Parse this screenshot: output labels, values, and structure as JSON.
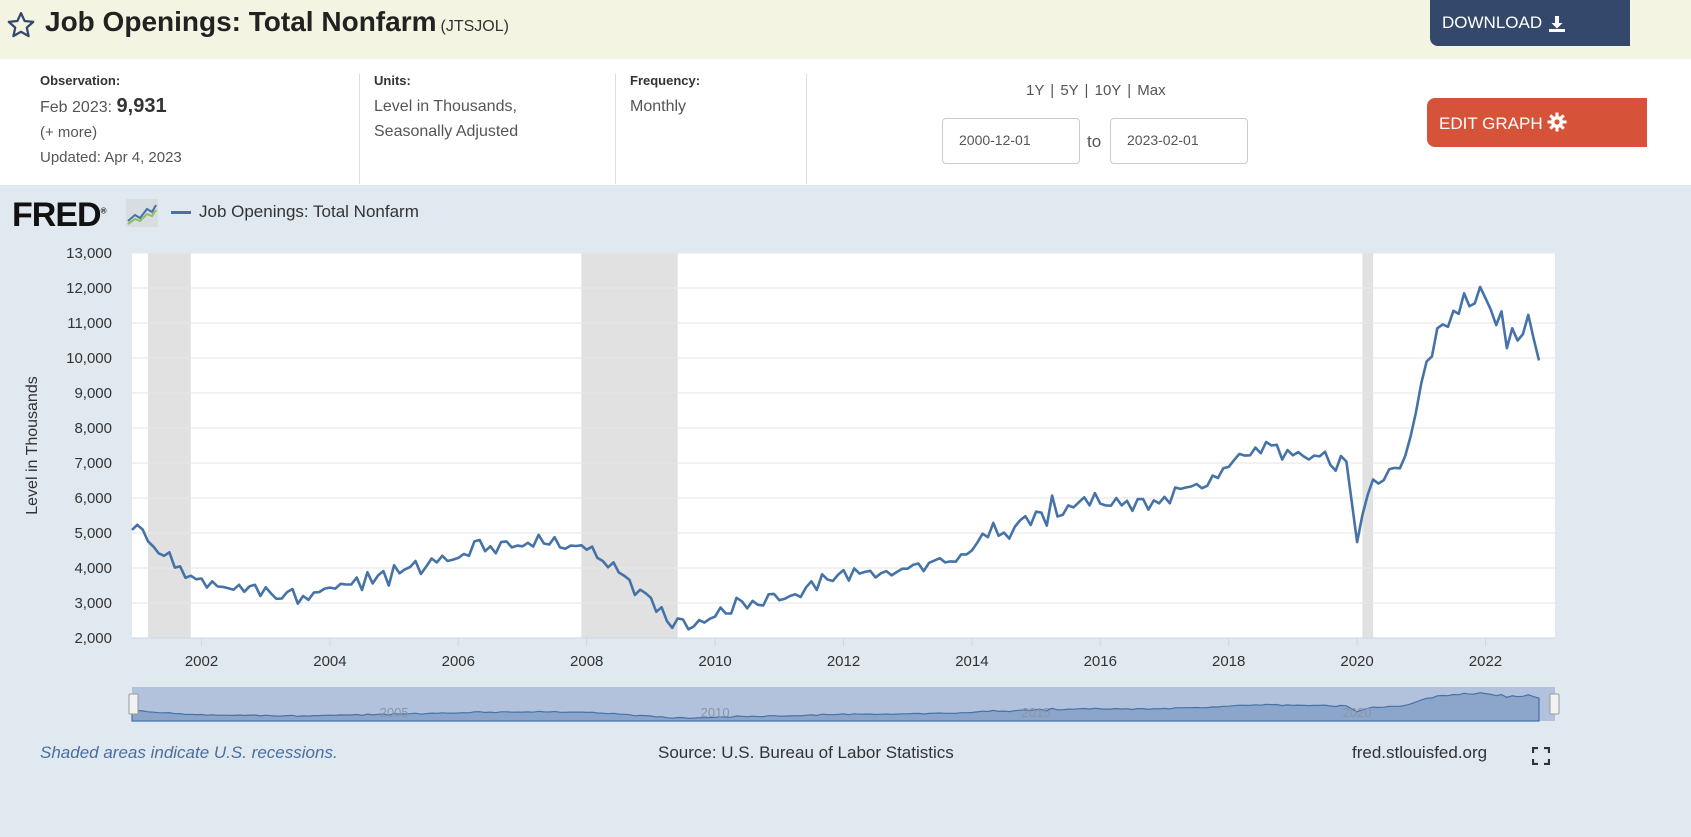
{
  "header": {
    "title": "Job Openings: Total Nonfarm",
    "series_id": "(JTSJOL)",
    "download_label": "DOWNLOAD",
    "colors": {
      "bg": "#f4f4e2",
      "download_bg": "#33486b"
    }
  },
  "meta": {
    "observation_label": "Observation:",
    "observation_period": "Feb 2023:",
    "observation_value": "9,931",
    "more_link": "(+ more)",
    "updated": "Updated: Apr 4, 2023",
    "units_label": "Units:",
    "units_line1": "Level in Thousands,",
    "units_line2": "Seasonally Adjusted",
    "frequency_label": "Frequency:",
    "frequency_value": "Monthly",
    "range_links": [
      "1Y",
      "5Y",
      "10Y",
      "Max"
    ],
    "start_date": "2000-12-01",
    "to_label": "to",
    "end_date": "2023-02-01",
    "edit_label": "EDIT GRAPH",
    "edit_color": "#d6533a"
  },
  "legend": {
    "series_name": "Job Openings: Total Nonfarm",
    "logo_text": "FRED"
  },
  "footer": {
    "recession_note": "Shaded areas indicate U.S. recessions.",
    "source": "Source: U.S. Bureau of Labor Statistics",
    "site": "fred.stlouisfed.org"
  },
  "chart_data": {
    "type": "line",
    "ylabel": "Level in Thousands",
    "ylim": [
      2000,
      13000
    ],
    "yticks": [
      2000,
      3000,
      4000,
      5000,
      6000,
      7000,
      8000,
      9000,
      10000,
      11000,
      12000,
      13000
    ],
    "ytick_labels": [
      "2,000",
      "3,000",
      "4,000",
      "5,000",
      "6,000",
      "7,000",
      "8,000",
      "9,000",
      "10,000",
      "11,000",
      "12,000",
      "13,000"
    ],
    "xrange": [
      "2000-12",
      "2023-02"
    ],
    "xticks": [
      "2002",
      "2004",
      "2006",
      "2008",
      "2010",
      "2012",
      "2014",
      "2016",
      "2018",
      "2020",
      "2022"
    ],
    "navigator_labels": [
      "2005",
      "2010",
      "2015",
      "2020"
    ],
    "line_color": "#4572a7",
    "recession_color": "#e1e1e1",
    "recessions": [
      [
        "2001-03",
        "2001-11"
      ],
      [
        "2007-12",
        "2009-06"
      ],
      [
        "2020-02",
        "2020-04"
      ]
    ],
    "series": [
      {
        "name": "Job Openings: Total Nonfarm",
        "start": "2000-12",
        "values": [
          5088,
          5234,
          5098,
          4762,
          4610,
          4420,
          4350,
          4450,
          4010,
          4050,
          3720,
          3780,
          3680,
          3700,
          3440,
          3620,
          3470,
          3460,
          3420,
          3380,
          3520,
          3320,
          3480,
          3520,
          3200,
          3450,
          3270,
          3120,
          3130,
          3310,
          3400,
          2980,
          3200,
          3090,
          3300,
          3310,
          3410,
          3440,
          3410,
          3550,
          3530,
          3530,
          3730,
          3370,
          3880,
          3560,
          3790,
          3910,
          3500,
          4080,
          3850,
          3960,
          4030,
          4200,
          3830,
          4040,
          4270,
          4160,
          4350,
          4200,
          4240,
          4290,
          4400,
          4350,
          4760,
          4800,
          4480,
          4620,
          4420,
          4740,
          4760,
          4590,
          4640,
          4620,
          4720,
          4610,
          4950,
          4700,
          4670,
          4880,
          4590,
          4550,
          4640,
          4630,
          4650,
          4520,
          4610,
          4290,
          4200,
          4020,
          4160,
          3870,
          3780,
          3660,
          3230,
          3380,
          3280,
          3150,
          2750,
          2880,
          2480,
          2290,
          2560,
          2530,
          2250,
          2330,
          2510,
          2440,
          2550,
          2610,
          2870,
          2700,
          2700,
          3150,
          3050,
          2850,
          3060,
          2950,
          2930,
          3250,
          3260,
          3080,
          3120,
          3200,
          3250,
          3170,
          3450,
          3620,
          3370,
          3820,
          3670,
          3630,
          3810,
          3940,
          3640,
          3990,
          3840,
          3890,
          3920,
          3730,
          3850,
          3910,
          3790,
          3890,
          3980,
          3980,
          4090,
          4130,
          3910,
          4150,
          4210,
          4280,
          4160,
          4190,
          4180,
          4390,
          4390,
          4500,
          4720,
          4980,
          4880,
          5290,
          4920,
          5010,
          4840,
          5170,
          5360,
          5480,
          5230,
          5610,
          5580,
          5210,
          6070,
          5470,
          5520,
          5790,
          5730,
          5880,
          6020,
          5790,
          6140,
          5840,
          5790,
          5780,
          6000,
          5790,
          5920,
          5630,
          5970,
          5970,
          5670,
          5930,
          5850,
          6030,
          5850,
          6300,
          6260,
          6300,
          6330,
          6400,
          6280,
          6350,
          6640,
          6570,
          6850,
          6890,
          7080,
          7260,
          7210,
          7220,
          7440,
          7280,
          7600,
          7500,
          7520,
          7100,
          7370,
          7220,
          7310,
          7190,
          7100,
          7210,
          7190,
          7320,
          6950,
          6780,
          7200,
          7040,
          5900,
          4740,
          5510,
          6100,
          6530,
          6410,
          6510,
          6820,
          6860,
          6850,
          7200,
          7760,
          8440,
          9280,
          9900,
          10050,
          10850,
          10960,
          10890,
          11350,
          11260,
          11850,
          11480,
          11560,
          12030,
          11710,
          11380,
          10940,
          11330,
          10280,
          10850,
          10500,
          10680,
          11230,
          10560,
          9931
        ]
      }
    ]
  }
}
